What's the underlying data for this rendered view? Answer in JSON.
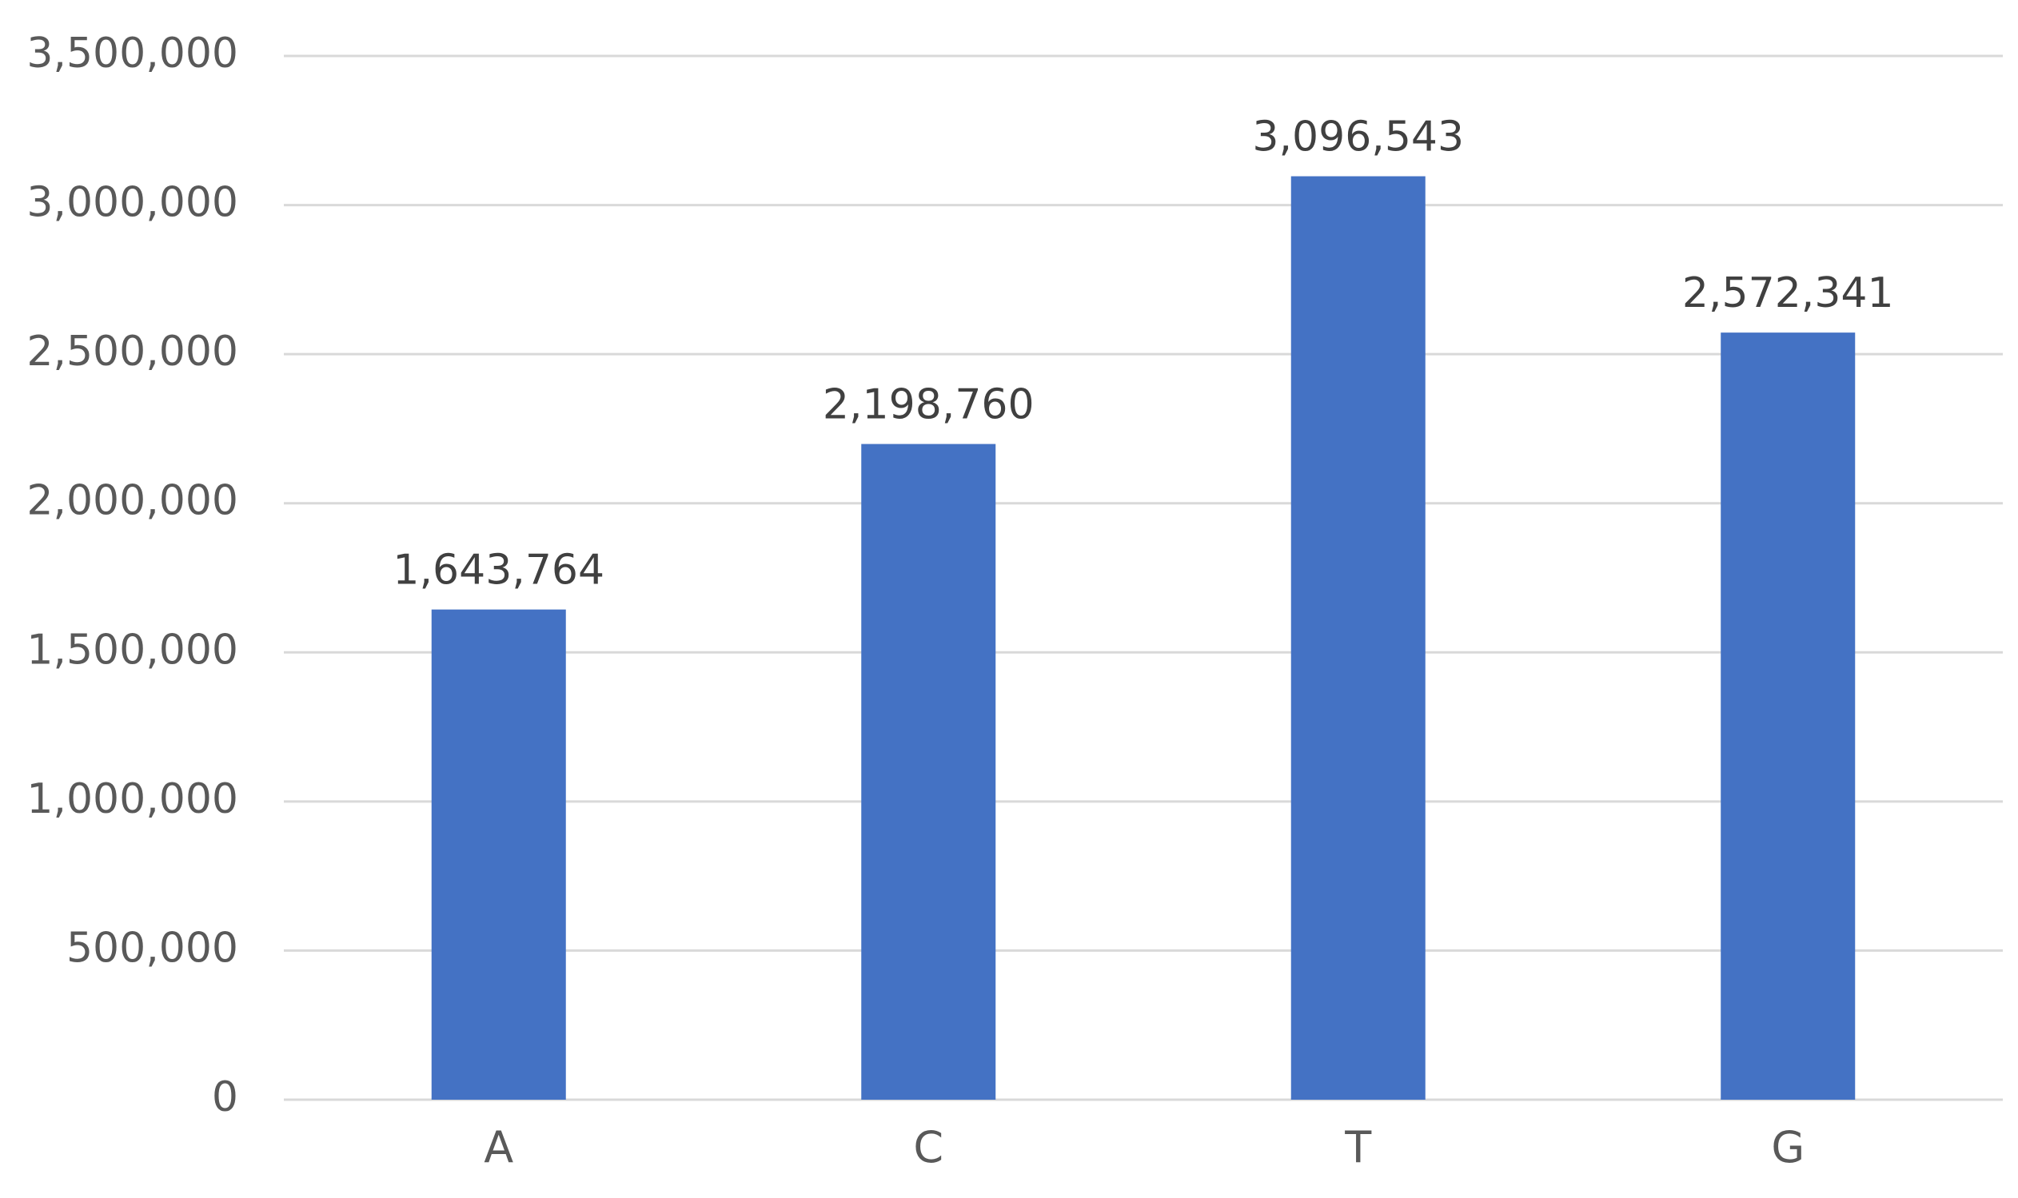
{
  "chart_data": {
    "type": "bar",
    "title": "",
    "xlabel": "",
    "ylabel": "",
    "categories": [
      "A",
      "C",
      "T",
      "G"
    ],
    "values": [
      1643764,
      2198760,
      3096543,
      2572341
    ],
    "value_labels": [
      "1,643,764",
      "2,198,760",
      "3,096,543",
      "2,572,341"
    ],
    "ylim": [
      0,
      3500000
    ],
    "y_ticks": [
      0,
      500000,
      1000000,
      1500000,
      2000000,
      2500000,
      3000000,
      3500000
    ],
    "y_tick_labels": [
      "0",
      "500,000",
      "1,000,000",
      "1,500,000",
      "2,000,000",
      "2,500,000",
      "3,000,000",
      "3,500,000"
    ],
    "grid": true,
    "legend": "none",
    "colors": {
      "bar": "#4472c4",
      "grid": "#d9d9d9",
      "tick_text": "#595959",
      "label_text": "#404040"
    }
  }
}
